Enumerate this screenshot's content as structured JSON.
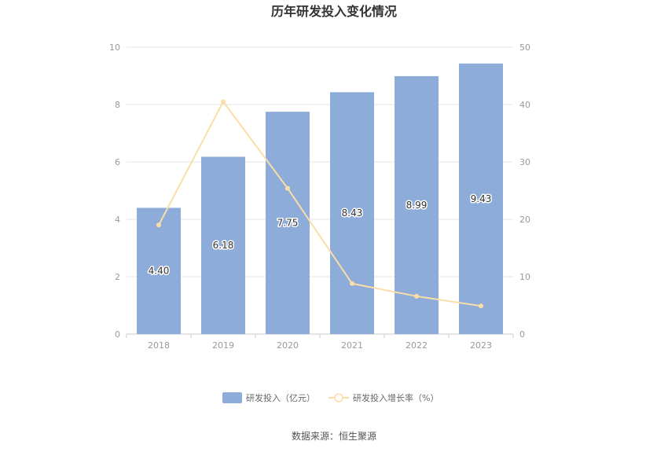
{
  "chart_data": {
    "type": "bar",
    "title": "历年研发投入变化情况",
    "categories": [
      "2018",
      "2019",
      "2020",
      "2021",
      "2022",
      "2023"
    ],
    "series": [
      {
        "name": "研发投入（亿元）",
        "type": "bar",
        "axis": "left",
        "color": "#8eacd9",
        "values": [
          4.4,
          6.18,
          7.75,
          8.43,
          8.99,
          9.43
        ],
        "labels": [
          "4.40",
          "6.18",
          "7.75",
          "8.43",
          "8.99",
          "9.43"
        ]
      },
      {
        "name": "研发投入增长率（%）",
        "type": "line",
        "axis": "right",
        "color": "#fbdea5",
        "values": [
          19.0,
          40.5,
          25.4,
          8.8,
          6.6,
          4.9
        ]
      }
    ],
    "y_left": {
      "min": 0,
      "max": 10,
      "ticks": [
        "0",
        "2",
        "4",
        "6",
        "8",
        "10"
      ]
    },
    "y_right": {
      "min": 0,
      "max": 50,
      "ticks": [
        "0",
        "10",
        "20",
        "30",
        "40",
        "50"
      ]
    },
    "grid": true,
    "legend": "bottom-center"
  },
  "source": "数据来源：恒生聚源"
}
